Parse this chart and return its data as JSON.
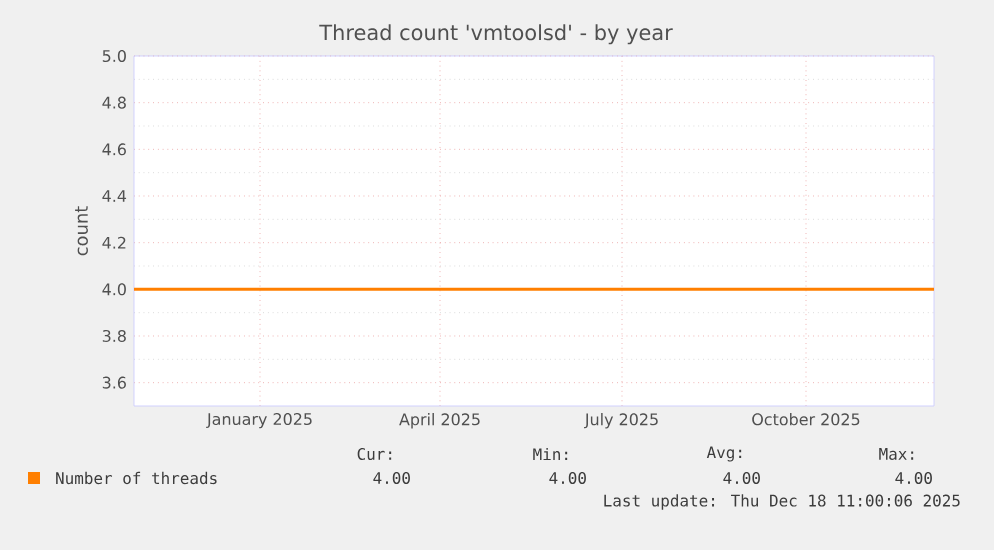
{
  "chart_data": {
    "type": "line",
    "title": "Thread count 'vmtoolsd' - by year",
    "ylabel": "count",
    "x": [
      "2024-11-13",
      "2025-12-18"
    ],
    "series": [
      {
        "name": "Number of threads",
        "color": "#ff7f00",
        "values": [
          4.0,
          4.0
        ]
      }
    ],
    "xlim": [
      "2024-11-13",
      "2025-12-18"
    ],
    "xticks": [
      {
        "value": "2025-01-15",
        "label": "January 2025"
      },
      {
        "value": "2025-04-15",
        "label": "April 2025"
      },
      {
        "value": "2025-07-15",
        "label": "July 2025"
      },
      {
        "value": "2025-10-15",
        "label": "October 2025"
      }
    ],
    "ylim": [
      3.5,
      5.0
    ],
    "yticks": [
      3.6,
      3.8,
      {
        "value": 4,
        "label": "4.0"
      },
      4.2,
      4.4,
      4.6,
      4.8,
      {
        "value": 5,
        "label": "5.0"
      }
    ],
    "grid": true,
    "legend": "bottom left",
    "annotations": [
      "Cur:",
      "Min:",
      "Avg:",
      "Max:",
      "4.00",
      "4.00",
      "4.00",
      "4.00",
      "Last update: Thu Dec 18 11:00:06 2025"
    ]
  }
}
